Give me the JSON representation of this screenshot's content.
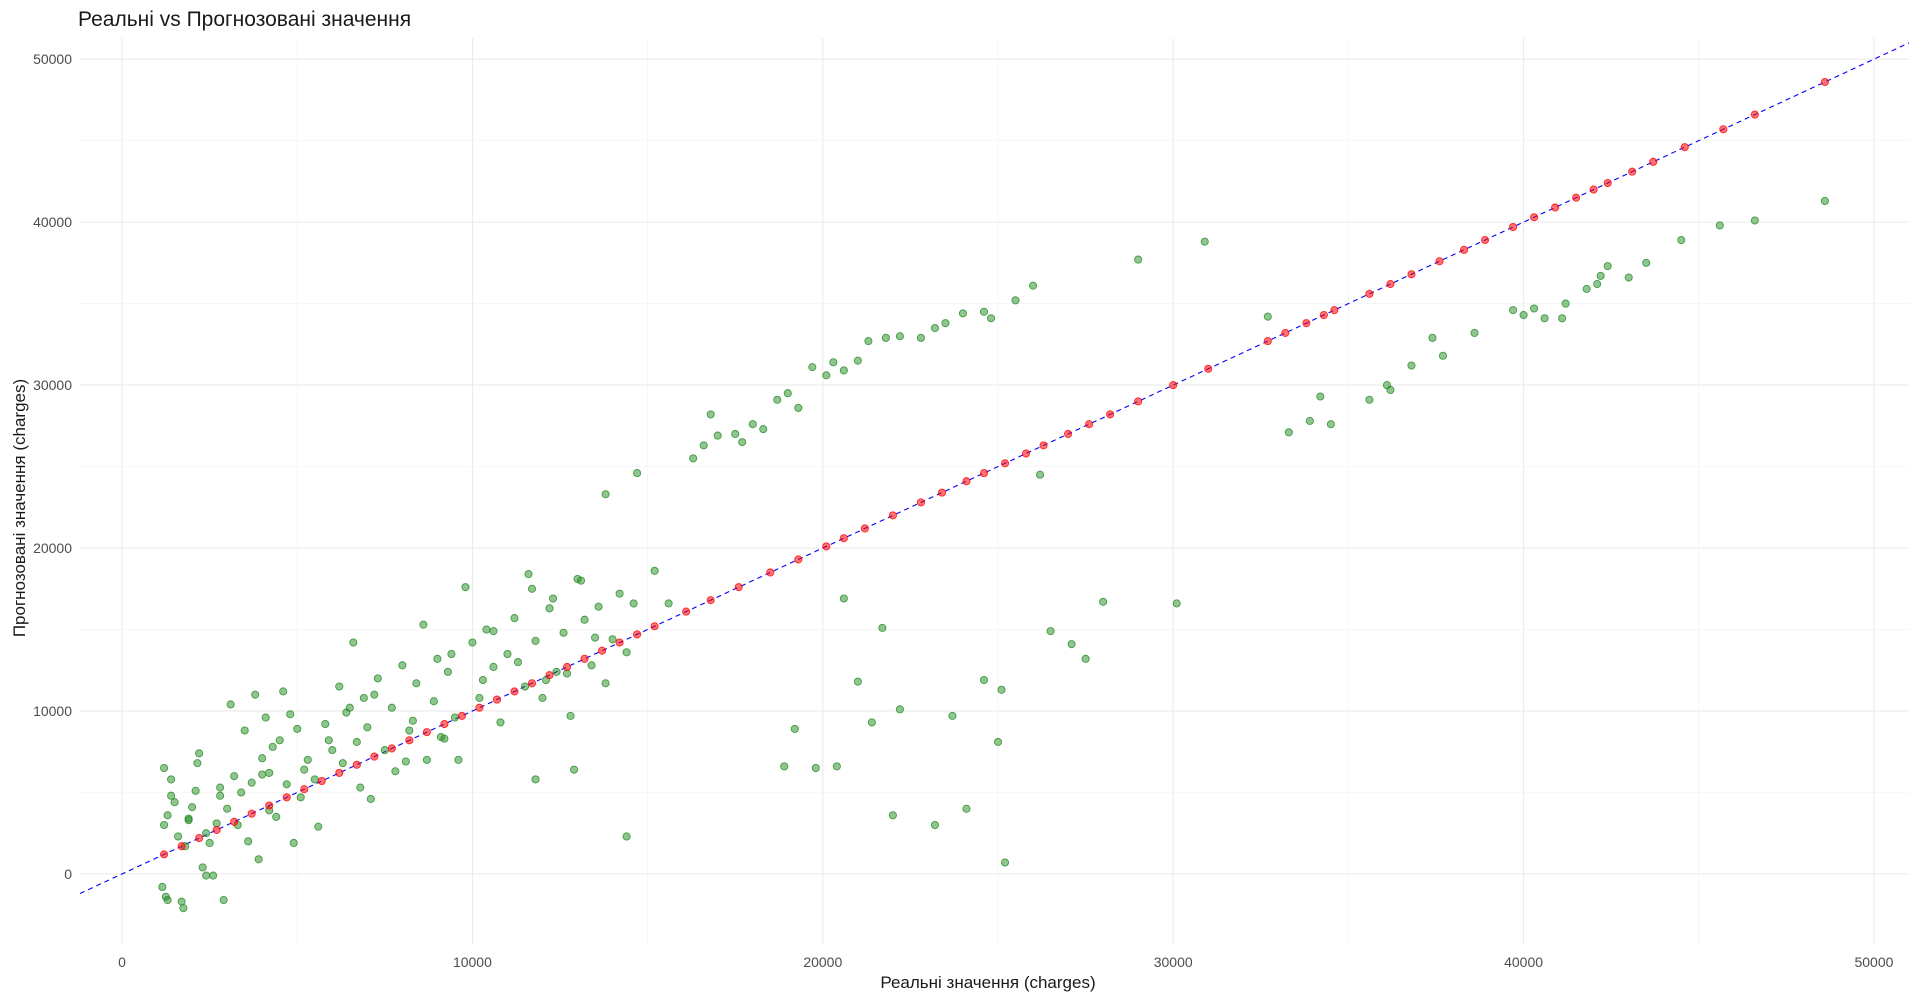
{
  "chart_data": {
    "type": "scatter",
    "title": "Реальні vs Прогнозовані значення",
    "xlabel": "Реальні значення (charges)",
    "ylabel": "Прогнозовані значення (charges)",
    "xlim": [
      -1200,
      51000
    ],
    "ylim": [
      -4300,
      51300
    ],
    "xticks": [
      0,
      10000,
      20000,
      30000,
      40000,
      50000
    ],
    "yticks": [
      0,
      10000,
      20000,
      30000,
      40000,
      50000
    ],
    "xtick_labels": [
      "0",
      "10000",
      "20000",
      "30000",
      "40000",
      "50000"
    ],
    "ytick_labels": [
      "0",
      "10000",
      "20000",
      "30000",
      "40000",
      "50000"
    ],
    "grid": true,
    "reference_line": {
      "slope": 1,
      "intercept": 0,
      "color": "#0000ff",
      "style": "dashed"
    },
    "series": [
      {
        "color": "#228b22",
        "points": [
          [
            1200,
            6500
          ],
          [
            1200,
            3000
          ],
          [
            1250,
            -1400
          ],
          [
            1300,
            -1600
          ],
          [
            1150,
            -800
          ],
          [
            1300,
            3600
          ],
          [
            1400,
            5800
          ],
          [
            1500,
            4400
          ],
          [
            1600,
            2300
          ],
          [
            1700,
            -1700
          ],
          [
            1750,
            -2100
          ],
          [
            1800,
            1700
          ],
          [
            1900,
            3400
          ],
          [
            2000,
            4100
          ],
          [
            2100,
            5100
          ],
          [
            2150,
            6800
          ],
          [
            2200,
            7400
          ],
          [
            2300,
            400
          ],
          [
            2400,
            -100
          ],
          [
            2500,
            1900
          ],
          [
            2600,
            -100
          ],
          [
            2700,
            3100
          ],
          [
            2800,
            5300
          ],
          [
            2900,
            -1600
          ],
          [
            3000,
            4000
          ],
          [
            3100,
            10400
          ],
          [
            3200,
            6000
          ],
          [
            3300,
            3000
          ],
          [
            3500,
            8800
          ],
          [
            3600,
            2000
          ],
          [
            3700,
            5600
          ],
          [
            3800,
            11000
          ],
          [
            3900,
            900
          ],
          [
            4000,
            7100
          ],
          [
            4100,
            9600
          ],
          [
            4200,
            6200
          ],
          [
            4300,
            7800
          ],
          [
            4400,
            3500
          ],
          [
            4500,
            8200
          ],
          [
            4600,
            11200
          ],
          [
            4700,
            5500
          ],
          [
            4800,
            9800
          ],
          [
            4900,
            1900
          ],
          [
            5000,
            8900
          ],
          [
            5100,
            4700
          ],
          [
            5300,
            7000
          ],
          [
            5500,
            5800
          ],
          [
            5600,
            2900
          ],
          [
            5800,
            9200
          ],
          [
            6000,
            7600
          ],
          [
            6200,
            11500
          ],
          [
            6300,
            6800
          ],
          [
            6500,
            10200
          ],
          [
            6600,
            14200
          ],
          [
            6700,
            8100
          ],
          [
            6800,
            5300
          ],
          [
            7000,
            9000
          ],
          [
            7100,
            4600
          ],
          [
            7300,
            12000
          ],
          [
            7500,
            7600
          ],
          [
            7700,
            10200
          ],
          [
            7800,
            6300
          ],
          [
            8000,
            12800
          ],
          [
            8200,
            8800
          ],
          [
            8400,
            11700
          ],
          [
            8600,
            15300
          ],
          [
            8700,
            7000
          ],
          [
            8900,
            10600
          ],
          [
            9000,
            13200
          ],
          [
            9100,
            8400
          ],
          [
            9300,
            12400
          ],
          [
            9500,
            9600
          ],
          [
            9600,
            7000
          ],
          [
            9800,
            17600
          ],
          [
            10000,
            14200
          ],
          [
            10200,
            10800
          ],
          [
            10400,
            15000
          ],
          [
            10600,
            12700
          ],
          [
            10800,
            9300
          ],
          [
            11000,
            13500
          ],
          [
            11200,
            15700
          ],
          [
            11500,
            11500
          ],
          [
            11600,
            18400
          ],
          [
            11800,
            14300
          ],
          [
            12000,
            10800
          ],
          [
            12200,
            16300
          ],
          [
            12400,
            12400
          ],
          [
            12600,
            14800
          ],
          [
            12800,
            9700
          ],
          [
            13000,
            18100
          ],
          [
            13200,
            15600
          ],
          [
            13400,
            12800
          ],
          [
            13600,
            16400
          ],
          [
            13800,
            11700
          ],
          [
            14000,
            14400
          ],
          [
            14200,
            17200
          ],
          [
            14400,
            13600
          ],
          [
            14600,
            16600
          ],
          [
            11800,
            5800
          ],
          [
            12900,
            6400
          ],
          [
            14400,
            2300
          ],
          [
            13800,
            23300
          ],
          [
            14700,
            24600
          ],
          [
            15200,
            18600
          ],
          [
            15600,
            16600
          ],
          [
            16300,
            25500
          ],
          [
            16600,
            26300
          ],
          [
            16800,
            28200
          ],
          [
            17000,
            26900
          ],
          [
            17500,
            27000
          ],
          [
            17700,
            26500
          ],
          [
            18000,
            27600
          ],
          [
            18300,
            27300
          ],
          [
            18700,
            29100
          ],
          [
            19000,
            29500
          ],
          [
            19300,
            28600
          ],
          [
            19700,
            31100
          ],
          [
            20100,
            30600
          ],
          [
            20300,
            31400
          ],
          [
            20600,
            30900
          ],
          [
            21000,
            31500
          ],
          [
            21300,
            32700
          ],
          [
            21800,
            32900
          ],
          [
            22200,
            33000
          ],
          [
            22800,
            32900
          ],
          [
            23200,
            33500
          ],
          [
            23500,
            33800
          ],
          [
            24000,
            34400
          ],
          [
            24600,
            34500
          ],
          [
            24800,
            34100
          ],
          [
            25500,
            35200
          ],
          [
            26000,
            36100
          ],
          [
            26200,
            24500
          ],
          [
            29000,
            37700
          ],
          [
            30900,
            38800
          ],
          [
            20600,
            16900
          ],
          [
            21700,
            15100
          ],
          [
            21000,
            11800
          ],
          [
            21400,
            9300
          ],
          [
            22200,
            10100
          ],
          [
            19200,
            8900
          ],
          [
            18900,
            6600
          ],
          [
            19800,
            6500
          ],
          [
            20400,
            6600
          ],
          [
            22000,
            3600
          ],
          [
            23200,
            3000
          ],
          [
            23700,
            9700
          ],
          [
            24100,
            4000
          ],
          [
            24600,
            11900
          ],
          [
            25100,
            11300
          ],
          [
            25000,
            8100
          ],
          [
            25200,
            700
          ],
          [
            26500,
            14900
          ],
          [
            27100,
            14100
          ],
          [
            27500,
            13200
          ],
          [
            28000,
            16700
          ],
          [
            30100,
            16600
          ],
          [
            32700,
            34200
          ],
          [
            33300,
            27100
          ],
          [
            33900,
            27800
          ],
          [
            34200,
            29300
          ],
          [
            34500,
            27600
          ],
          [
            35600,
            29100
          ],
          [
            36100,
            30000
          ],
          [
            36200,
            29700
          ],
          [
            36800,
            31200
          ],
          [
            37400,
            32900
          ],
          [
            37700,
            31800
          ],
          [
            38600,
            33200
          ],
          [
            39700,
            34600
          ],
          [
            40000,
            34300
          ],
          [
            40300,
            34700
          ],
          [
            40600,
            34100
          ],
          [
            41100,
            34100
          ],
          [
            41200,
            35000
          ],
          [
            41800,
            35900
          ],
          [
            42100,
            36200
          ],
          [
            42200,
            36700
          ],
          [
            42400,
            37300
          ],
          [
            43000,
            36600
          ],
          [
            43500,
            37500
          ],
          [
            44500,
            38900
          ],
          [
            45600,
            39800
          ],
          [
            46600,
            40100
          ],
          [
            48600,
            41300
          ],
          [
            1400,
            4800
          ],
          [
            1900,
            3300
          ],
          [
            2400,
            2500
          ],
          [
            2800,
            4800
          ],
          [
            3400,
            5000
          ],
          [
            4200,
            3900
          ],
          [
            5200,
            6400
          ],
          [
            5900,
            8200
          ],
          [
            6400,
            9900
          ],
          [
            7200,
            11000
          ],
          [
            8300,
            9400
          ],
          [
            9400,
            13500
          ],
          [
            10300,
            11900
          ],
          [
            11300,
            13000
          ],
          [
            12100,
            11900
          ],
          [
            12700,
            12300
          ],
          [
            13500,
            14500
          ],
          [
            6900,
            10800
          ],
          [
            8100,
            6900
          ],
          [
            9200,
            8300
          ],
          [
            10600,
            14900
          ],
          [
            11700,
            17500
          ],
          [
            12300,
            16900
          ],
          [
            13100,
            18000
          ],
          [
            4000,
            6100
          ]
        ]
      },
      {
        "color": "#ff0000",
        "points": [
          [
            1200,
            1200
          ],
          [
            1700,
            1700
          ],
          [
            2200,
            2200
          ],
          [
            2700,
            2700
          ],
          [
            3200,
            3200
          ],
          [
            3700,
            3700
          ],
          [
            4200,
            4200
          ],
          [
            4700,
            4700
          ],
          [
            5200,
            5200
          ],
          [
            5700,
            5700
          ],
          [
            6200,
            6200
          ],
          [
            6700,
            6700
          ],
          [
            7200,
            7200
          ],
          [
            7700,
            7700
          ],
          [
            8200,
            8200
          ],
          [
            8700,
            8700
          ],
          [
            9200,
            9200
          ],
          [
            9700,
            9700
          ],
          [
            10200,
            10200
          ],
          [
            10700,
            10700
          ],
          [
            11200,
            11200
          ],
          [
            11700,
            11700
          ],
          [
            12200,
            12200
          ],
          [
            12700,
            12700
          ],
          [
            13200,
            13200
          ],
          [
            13700,
            13700
          ],
          [
            14200,
            14200
          ],
          [
            14700,
            14700
          ],
          [
            15200,
            15200
          ],
          [
            16100,
            16100
          ],
          [
            16800,
            16800
          ],
          [
            17600,
            17600
          ],
          [
            18500,
            18500
          ],
          [
            19300,
            19300
          ],
          [
            20100,
            20100
          ],
          [
            20600,
            20600
          ],
          [
            21200,
            21200
          ],
          [
            22000,
            22000
          ],
          [
            22800,
            22800
          ],
          [
            23400,
            23400
          ],
          [
            24100,
            24100
          ],
          [
            24600,
            24600
          ],
          [
            25200,
            25200
          ],
          [
            25800,
            25800
          ],
          [
            26300,
            26300
          ],
          [
            27000,
            27000
          ],
          [
            27600,
            27600
          ],
          [
            28200,
            28200
          ],
          [
            29000,
            29000
          ],
          [
            30000,
            30000
          ],
          [
            31000,
            31000
          ],
          [
            32700,
            32700
          ],
          [
            33200,
            33200
          ],
          [
            33800,
            33800
          ],
          [
            34300,
            34300
          ],
          [
            34600,
            34600
          ],
          [
            35600,
            35600
          ],
          [
            36200,
            36200
          ],
          [
            36800,
            36800
          ],
          [
            37600,
            37600
          ],
          [
            38300,
            38300
          ],
          [
            38900,
            38900
          ],
          [
            39700,
            39700
          ],
          [
            40300,
            40300
          ],
          [
            40900,
            40900
          ],
          [
            41500,
            41500
          ],
          [
            42000,
            42000
          ],
          [
            42400,
            42400
          ],
          [
            43100,
            43100
          ],
          [
            43700,
            43700
          ],
          [
            44600,
            44600
          ],
          [
            45700,
            45700
          ],
          [
            46600,
            46600
          ],
          [
            48600,
            48600
          ]
        ]
      }
    ]
  }
}
